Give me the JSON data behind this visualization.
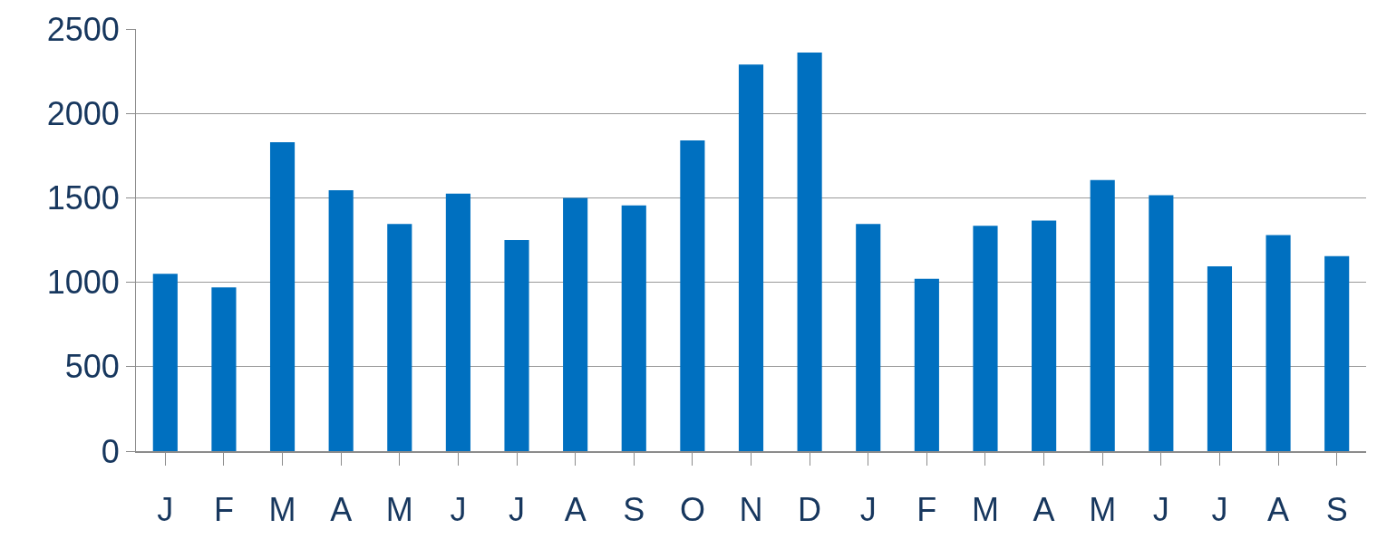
{
  "chart_data": {
    "type": "bar",
    "categories": [
      "J",
      "F",
      "M",
      "A",
      "M",
      "J",
      "J",
      "A",
      "S",
      "O",
      "N",
      "D",
      "J",
      "F",
      "M",
      "A",
      "M",
      "J",
      "J",
      "A",
      "S"
    ],
    "values": [
      1050,
      970,
      1830,
      1545,
      1345,
      1525,
      1250,
      1500,
      1455,
      1840,
      2290,
      2360,
      1345,
      1020,
      1335,
      1365,
      1605,
      1515,
      1095,
      1280,
      1155
    ],
    "color": "#0070c0",
    "ylim": [
      0,
      2500
    ],
    "yticks": [
      0,
      500,
      1000,
      1500,
      2000,
      2500
    ],
    "grid": "y",
    "legend": false
  }
}
